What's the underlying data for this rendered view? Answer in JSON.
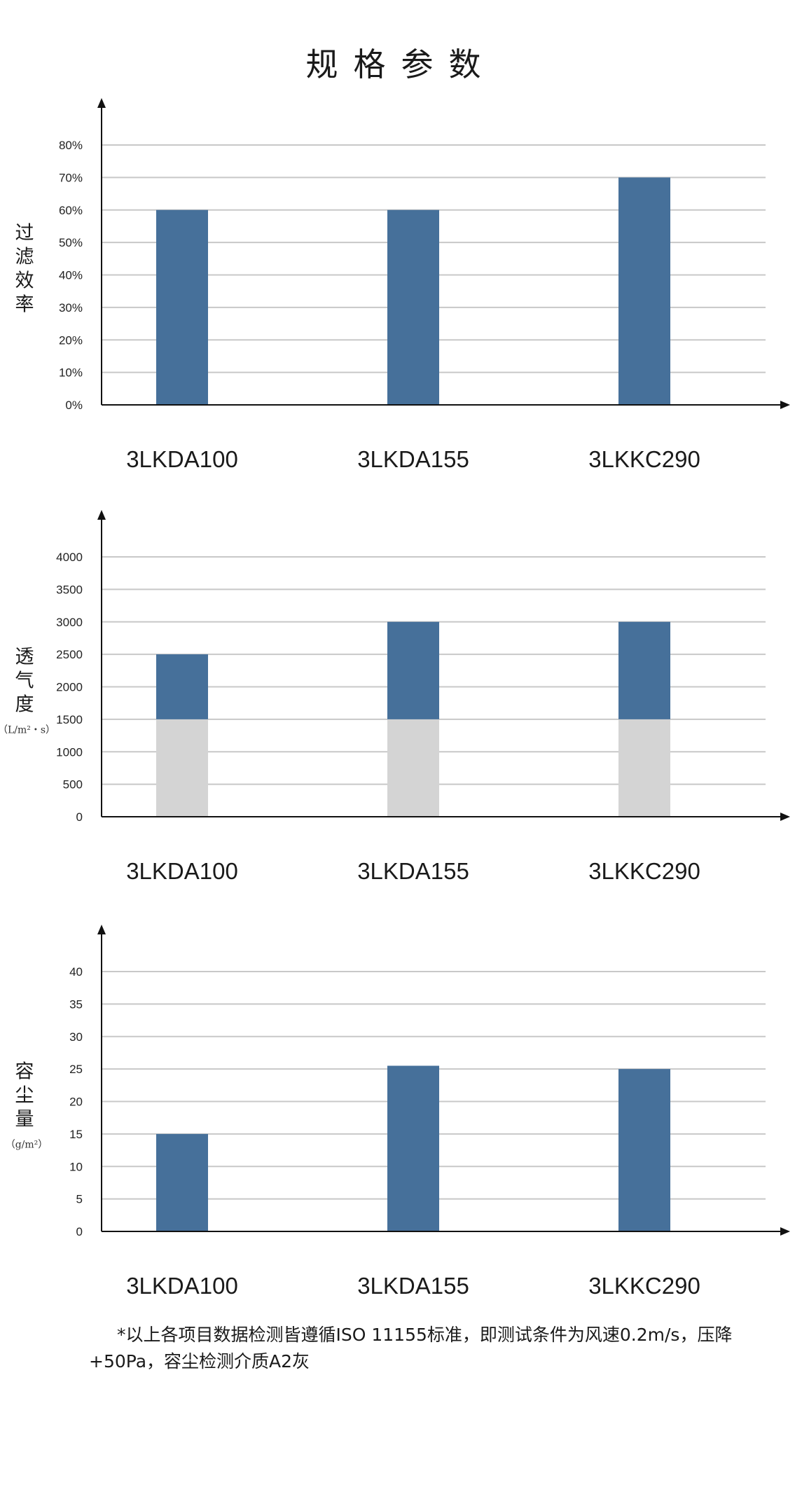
{
  "page_title": "规格参数",
  "colors": {
    "bar": "#46709A",
    "base": "#D4D4D4",
    "grid": "#C8C8C8",
    "axis": "#111111"
  },
  "chart_data": [
    {
      "type": "bar",
      "ylabel": "过滤效率",
      "unit": "",
      "categories": [
        "3LKDA100",
        "3LKDA155",
        "3LKKC290"
      ],
      "values": [
        60,
        60,
        70
      ],
      "ylim": [
        0,
        80
      ],
      "ytick_labels": [
        "0%",
        "10%",
        "20%",
        "30%",
        "40%",
        "50%",
        "60%",
        "70%",
        "80%"
      ],
      "grid": true
    },
    {
      "type": "bar",
      "ylabel": "透气度",
      "unit": "（L/m²・s）",
      "categories": [
        "3LKDA100",
        "3LKDA155",
        "3LKKC290"
      ],
      "values": [
        2500,
        3000,
        3000
      ],
      "base": 1500,
      "ylim": [
        0,
        4000
      ],
      "ytick_labels": [
        "0",
        "500",
        "1000",
        "1500",
        "2000",
        "2500",
        "3000",
        "3500",
        "4000"
      ],
      "grid": true
    },
    {
      "type": "bar",
      "ylabel": "容尘量",
      "unit": "（g/m²）",
      "categories": [
        "3LKDA100",
        "3LKDA155",
        "3LKKC290"
      ],
      "values": [
        15,
        25.5,
        25
      ],
      "ylim": [
        0,
        40
      ],
      "ytick_labels": [
        "0",
        "5",
        "10",
        "15",
        "20",
        "25",
        "30",
        "35",
        "40"
      ],
      "grid": true
    }
  ],
  "footnote": "*以上各项目数据检测皆遵循ISO 11155标准，即测试条件为风速0.2m/s，压降+50Pa，容尘检测介质A2灰"
}
